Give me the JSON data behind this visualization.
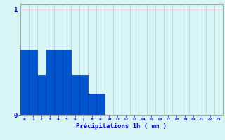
{
  "values": [
    0.62,
    0.62,
    0.38,
    0.62,
    0.62,
    0.62,
    0.38,
    0.38,
    0.2,
    0.2,
    0,
    0,
    0,
    0,
    0,
    0,
    0,
    0,
    0,
    0,
    0,
    0,
    0,
    0
  ],
  "categories": [
    0,
    1,
    2,
    3,
    4,
    5,
    6,
    7,
    8,
    9,
    10,
    11,
    12,
    13,
    14,
    15,
    16,
    17,
    18,
    19,
    20,
    21,
    22,
    23
  ],
  "bar_color": "#0055cc",
  "bar_edge_color": "#0033aa",
  "background_color": "#d8f5f5",
  "grid_color": "#b0c8c8",
  "grid_color_h": "#cc8888",
  "xlabel": "Précipitations 1h ( mm )",
  "xlabel_color": "#0000cc",
  "tick_color": "#0000cc",
  "ylim": [
    0,
    1.05
  ],
  "xlim": [
    -0.5,
    23.5
  ]
}
